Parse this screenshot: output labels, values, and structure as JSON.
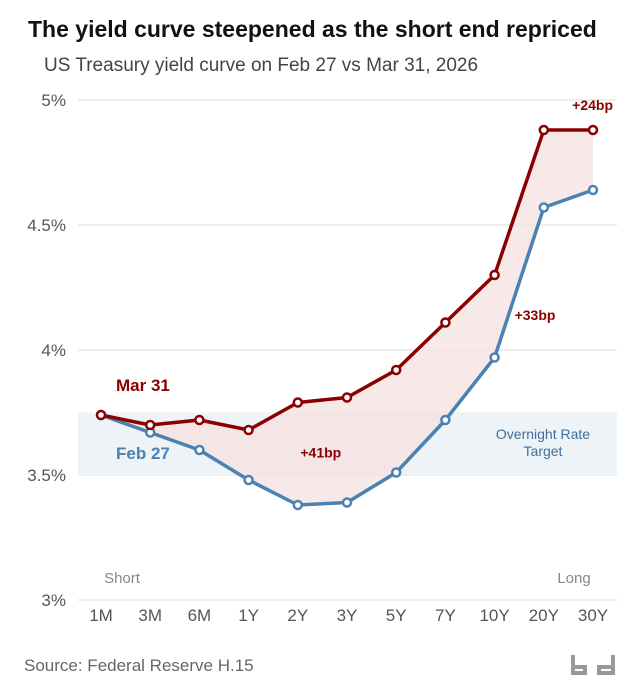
{
  "title": "The yield curve steepened as the short end repriced",
  "subtitle": "US Treasury yield curve on Feb 27 vs Mar 31, 2026",
  "source": "Source: Federal Reserve H.15",
  "logo": "bd",
  "colors": {
    "mar31": "#8b0000",
    "feb27": "#4a82b4",
    "spread_fill": "#f6e1e1",
    "band_fill": "#eef3f8",
    "grid": "#dddddd"
  },
  "chart_data": {
    "type": "line",
    "categories": [
      "1M",
      "3M",
      "6M",
      "1Y",
      "2Y",
      "3Y",
      "5Y",
      "7Y",
      "10Y",
      "20Y",
      "30Y"
    ],
    "series": [
      {
        "name": "Mar 31",
        "color": "#8b0000",
        "values": [
          3.74,
          3.7,
          3.72,
          3.68,
          3.79,
          3.81,
          3.92,
          4.11,
          4.3,
          4.88,
          4.88
        ]
      },
      {
        "name": "Feb 27",
        "color": "#4a82b4",
        "values": [
          3.74,
          3.67,
          3.6,
          3.48,
          3.38,
          3.39,
          3.51,
          3.72,
          3.97,
          4.57,
          4.64
        ]
      }
    ],
    "ylim": [
      3,
      5
    ],
    "yticks": [
      3,
      3.5,
      4,
      4.5,
      5
    ],
    "ytick_labels": [
      "3%",
      "3.5%",
      "4%",
      "4.5%",
      "5%"
    ],
    "x_end_labels": {
      "left": "Short",
      "right": "Long"
    },
    "band": {
      "label_lines": [
        "Overnight Rate",
        "Target"
      ],
      "from": 3.5,
      "to": 3.75
    },
    "annotations": [
      {
        "text": "+41bp",
        "category": "2Y",
        "value": 3.59
      },
      {
        "text": "+33bp",
        "category": "10Y",
        "value": 4.14
      },
      {
        "text": "+24bp",
        "category": "30Y",
        "value": 4.98
      }
    ],
    "grid": true,
    "legend": "inline labels at left"
  }
}
